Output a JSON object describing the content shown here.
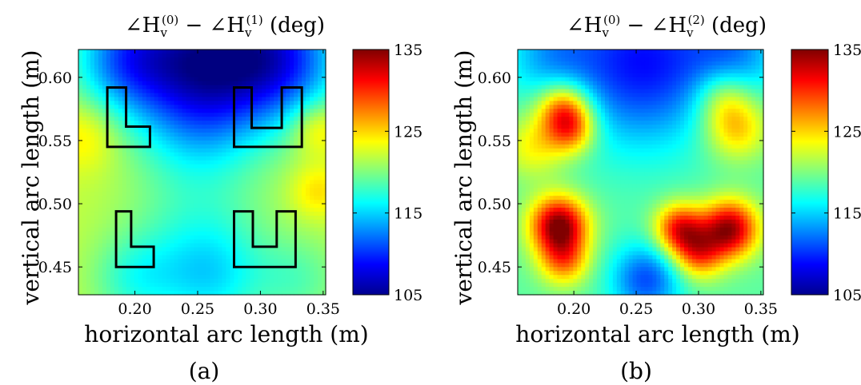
{
  "chart_data": [
    {
      "type": "heatmap",
      "panel_label": "(a)",
      "title": {
        "prefix": "∠H",
        "sub": "v",
        "sup": "(0)",
        "mid": " − ∠H",
        "sub2": "v",
        "sup2": "(1)",
        "suffix": " (deg)"
      },
      "xlabel": "horizontal arc length (m)",
      "ylabel": "vertical arc length (m)",
      "xlim": [
        0.155,
        0.352
      ],
      "ylim": [
        0.428,
        0.622
      ],
      "xticks": [
        0.2,
        0.25,
        0.3,
        0.35
      ],
      "xtick_labels": [
        "0.20",
        "0.25",
        "0.30",
        "0.35"
      ],
      "yticks": [
        0.45,
        0.5,
        0.55,
        0.6
      ],
      "ytick_labels": [
        "0.45",
        "0.50",
        "0.55",
        "0.60"
      ],
      "colorbar": {
        "min": 105,
        "max": 135,
        "ticks": [
          105,
          115,
          125,
          135
        ],
        "tick_labels": [
          "105",
          "115",
          "125",
          "135"
        ]
      },
      "base_value": 122,
      "field": [
        {
          "x": 0.255,
          "y": 0.612,
          "amp": -15,
          "r": 0.045
        },
        {
          "x": 0.19,
          "y": 0.615,
          "amp": -7,
          "r": 0.03
        },
        {
          "x": 0.32,
          "y": 0.615,
          "amp": -9,
          "r": 0.035
        },
        {
          "x": 0.25,
          "y": 0.555,
          "amp": -2,
          "r": 0.03
        },
        {
          "x": 0.16,
          "y": 0.555,
          "amp": 3,
          "r": 0.02
        },
        {
          "x": 0.345,
          "y": 0.56,
          "amp": 4,
          "r": 0.015
        },
        {
          "x": 0.345,
          "y": 0.51,
          "amp": 3,
          "r": 0.015
        },
        {
          "x": 0.26,
          "y": 0.44,
          "amp": -5,
          "r": 0.03
        },
        {
          "x": 0.2,
          "y": 0.44,
          "amp": -4,
          "r": 0.025
        },
        {
          "x": 0.25,
          "y": 0.48,
          "amp": -3,
          "r": 0.04
        },
        {
          "x": 0.33,
          "y": 0.44,
          "amp": -3,
          "r": 0.025
        }
      ],
      "outlines": [
        {
          "name": "L-shape upper-left",
          "points": [
            [
              0.178,
              0.592
            ],
            [
              0.193,
              0.592
            ],
            [
              0.193,
              0.561
            ],
            [
              0.212,
              0.561
            ],
            [
              0.212,
              0.545
            ],
            [
              0.178,
              0.545
            ]
          ]
        },
        {
          "name": "U-shape upper-right",
          "points": [
            [
              0.279,
              0.592
            ],
            [
              0.293,
              0.592
            ],
            [
              0.293,
              0.56
            ],
            [
              0.317,
              0.56
            ],
            [
              0.317,
              0.592
            ],
            [
              0.333,
              0.592
            ],
            [
              0.333,
              0.545
            ],
            [
              0.279,
              0.545
            ]
          ]
        },
        {
          "name": "L-shape lower-left",
          "points": [
            [
              0.185,
              0.494
            ],
            [
              0.197,
              0.494
            ],
            [
              0.197,
              0.466
            ],
            [
              0.215,
              0.466
            ],
            [
              0.215,
              0.45
            ],
            [
              0.185,
              0.45
            ]
          ]
        },
        {
          "name": "U-shape lower-right",
          "points": [
            [
              0.279,
              0.494
            ],
            [
              0.294,
              0.494
            ],
            [
              0.294,
              0.466
            ],
            [
              0.313,
              0.466
            ],
            [
              0.313,
              0.494
            ],
            [
              0.328,
              0.494
            ],
            [
              0.328,
              0.45
            ],
            [
              0.279,
              0.45
            ]
          ]
        }
      ]
    },
    {
      "type": "heatmap",
      "panel_label": "(b)",
      "title": {
        "prefix": "∠H",
        "sub": "v",
        "sup": "(0)",
        "mid": " − ∠H",
        "sub2": "v",
        "sup2": "(2)",
        "suffix": " (deg)"
      },
      "xlabel": "horizontal arc length (m)",
      "ylabel": "vertical arc length (m)",
      "xlim": [
        0.155,
        0.352
      ],
      "ylim": [
        0.428,
        0.622
      ],
      "xticks": [
        0.2,
        0.25,
        0.3,
        0.35
      ],
      "xtick_labels": [
        "0.20",
        "0.25",
        "0.30",
        "0.35"
      ],
      "yticks": [
        0.45,
        0.5,
        0.55,
        0.6
      ],
      "ytick_labels": [
        "0.45",
        "0.50",
        "0.55",
        "0.60"
      ],
      "colorbar": {
        "min": 105,
        "max": 135,
        "ticks": [
          105,
          115,
          125,
          135
        ],
        "tick_labels": [
          "105",
          "115",
          "125",
          "135"
        ]
      },
      "base_value": 119,
      "field": [
        {
          "x": 0.255,
          "y": 0.612,
          "amp": -10,
          "r": 0.045
        },
        {
          "x": 0.18,
          "y": 0.618,
          "amp": -4,
          "r": 0.025
        },
        {
          "x": 0.33,
          "y": 0.618,
          "amp": -5,
          "r": 0.025
        },
        {
          "x": 0.192,
          "y": 0.575,
          "amp": 10,
          "r": 0.015
        },
        {
          "x": 0.198,
          "y": 0.558,
          "amp": 8,
          "r": 0.014
        },
        {
          "x": 0.168,
          "y": 0.545,
          "amp": 5,
          "r": 0.018
        },
        {
          "x": 0.188,
          "y": 0.483,
          "amp": 16,
          "r": 0.016
        },
        {
          "x": 0.192,
          "y": 0.455,
          "amp": 8,
          "r": 0.014
        },
        {
          "x": 0.285,
          "y": 0.48,
          "amp": 12,
          "r": 0.014
        },
        {
          "x": 0.3,
          "y": 0.46,
          "amp": 9,
          "r": 0.014
        },
        {
          "x": 0.325,
          "y": 0.48,
          "amp": 15,
          "r": 0.016
        },
        {
          "x": 0.33,
          "y": 0.56,
          "amp": 7,
          "r": 0.018
        },
        {
          "x": 0.32,
          "y": 0.585,
          "amp": 5,
          "r": 0.016
        },
        {
          "x": 0.258,
          "y": 0.44,
          "amp": -8,
          "r": 0.02
        }
      ],
      "outlines": []
    }
  ]
}
